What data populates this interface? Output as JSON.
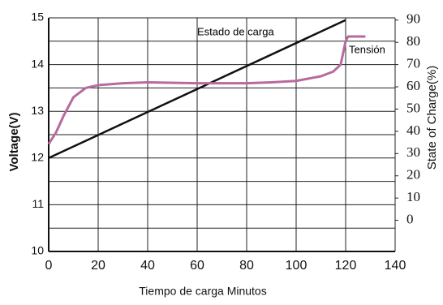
{
  "chart_data": {
    "type": "line",
    "xlabel": "Tiempo de carga Minutos",
    "ylabel": "Voltage(V)",
    "y2label": "State of Charge(%)",
    "xlim": [
      0,
      140
    ],
    "xticks": [
      0,
      20,
      40,
      60,
      80,
      100,
      120,
      140
    ],
    "ylim": [
      10,
      15
    ],
    "yticks": [
      10,
      11,
      12,
      13,
      14,
      15
    ],
    "yminor": [
      10.5,
      11.5,
      12.5,
      13.5,
      14.5
    ],
    "y2lim": [
      -14,
      91
    ],
    "y2ticks": [
      0,
      10,
      20,
      30,
      40,
      50,
      60,
      70,
      80,
      90
    ],
    "grid": true,
    "series": [
      {
        "name": "Estado de carga",
        "color": "#111111",
        "axis": "y2",
        "x": [
          0,
          120
        ],
        "values": [
          28,
          90
        ]
      },
      {
        "name": "Tensión",
        "color": "#b86a9e",
        "axis": "y",
        "x": [
          0,
          3,
          6,
          10,
          15,
          20,
          30,
          40,
          60,
          80,
          90,
          100,
          110,
          115,
          118,
          120,
          121,
          128
        ],
        "values": [
          12.3,
          12.55,
          12.9,
          13.3,
          13.5,
          13.56,
          13.6,
          13.62,
          13.6,
          13.6,
          13.62,
          13.65,
          13.75,
          13.85,
          14.0,
          14.5,
          14.6,
          14.6
        ]
      }
    ]
  }
}
